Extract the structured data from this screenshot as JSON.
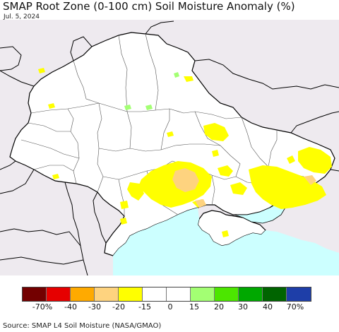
{
  "title": "SMAP Root Zone (0-100 cm) Soil Moisture Anomaly (%)",
  "date": "Jul. 5, 2024",
  "source": "Source: SMAP L4 Soil Moisture (NASA/GMAO)",
  "colors": {
    "land": "#ffffff",
    "outside": "#eeeaef",
    "sea": "#ccffff",
    "border": "#000000"
  },
  "legend": {
    "colors": [
      "#730000",
      "#e60000",
      "#ffaa00",
      "#fed37f",
      "#ffff00",
      "#ffffff",
      "#ffffff",
      "#a3ff73",
      "#4ce600",
      "#00a800",
      "#006400",
      "#1e3ea8"
    ],
    "labels": [
      "-70%",
      "-40",
      "-30",
      "-20",
      "-15",
      "0",
      "15",
      "20",
      "30",
      "40",
      "70%"
    ]
  }
}
